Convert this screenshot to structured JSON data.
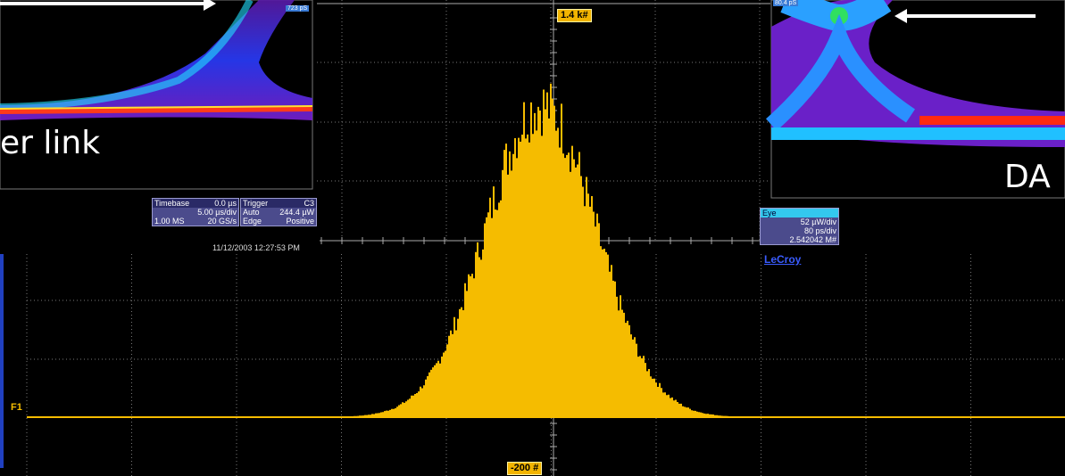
{
  "scope": {
    "histogram": {
      "top_label": "1.4 k#",
      "bottom_label": "-200 #",
      "trace_label": "F1"
    },
    "left_panel": {
      "caption": "er link",
      "badge": "723 pS"
    },
    "right_panel": {
      "caption": "DA",
      "badge": "80.4 pS"
    },
    "timebase": {
      "title": "Timebase",
      "delay": "0.0 µs",
      "scale": "5.00 µs/div",
      "samples": "1.00 MS",
      "rate": "20 GS/s"
    },
    "trigger": {
      "title": "Trigger",
      "channel": "C3",
      "mode": "Auto",
      "level": "244.4 µW",
      "type": "Edge",
      "slope": "Positive"
    },
    "timestamp": "11/12/2003 12:27:53 PM",
    "eye": {
      "title": "Eye",
      "vertical": "52 µW/div",
      "horizontal": "80 ps/div",
      "count": "2.542042 M#"
    },
    "brand": "LeCroy"
  }
}
